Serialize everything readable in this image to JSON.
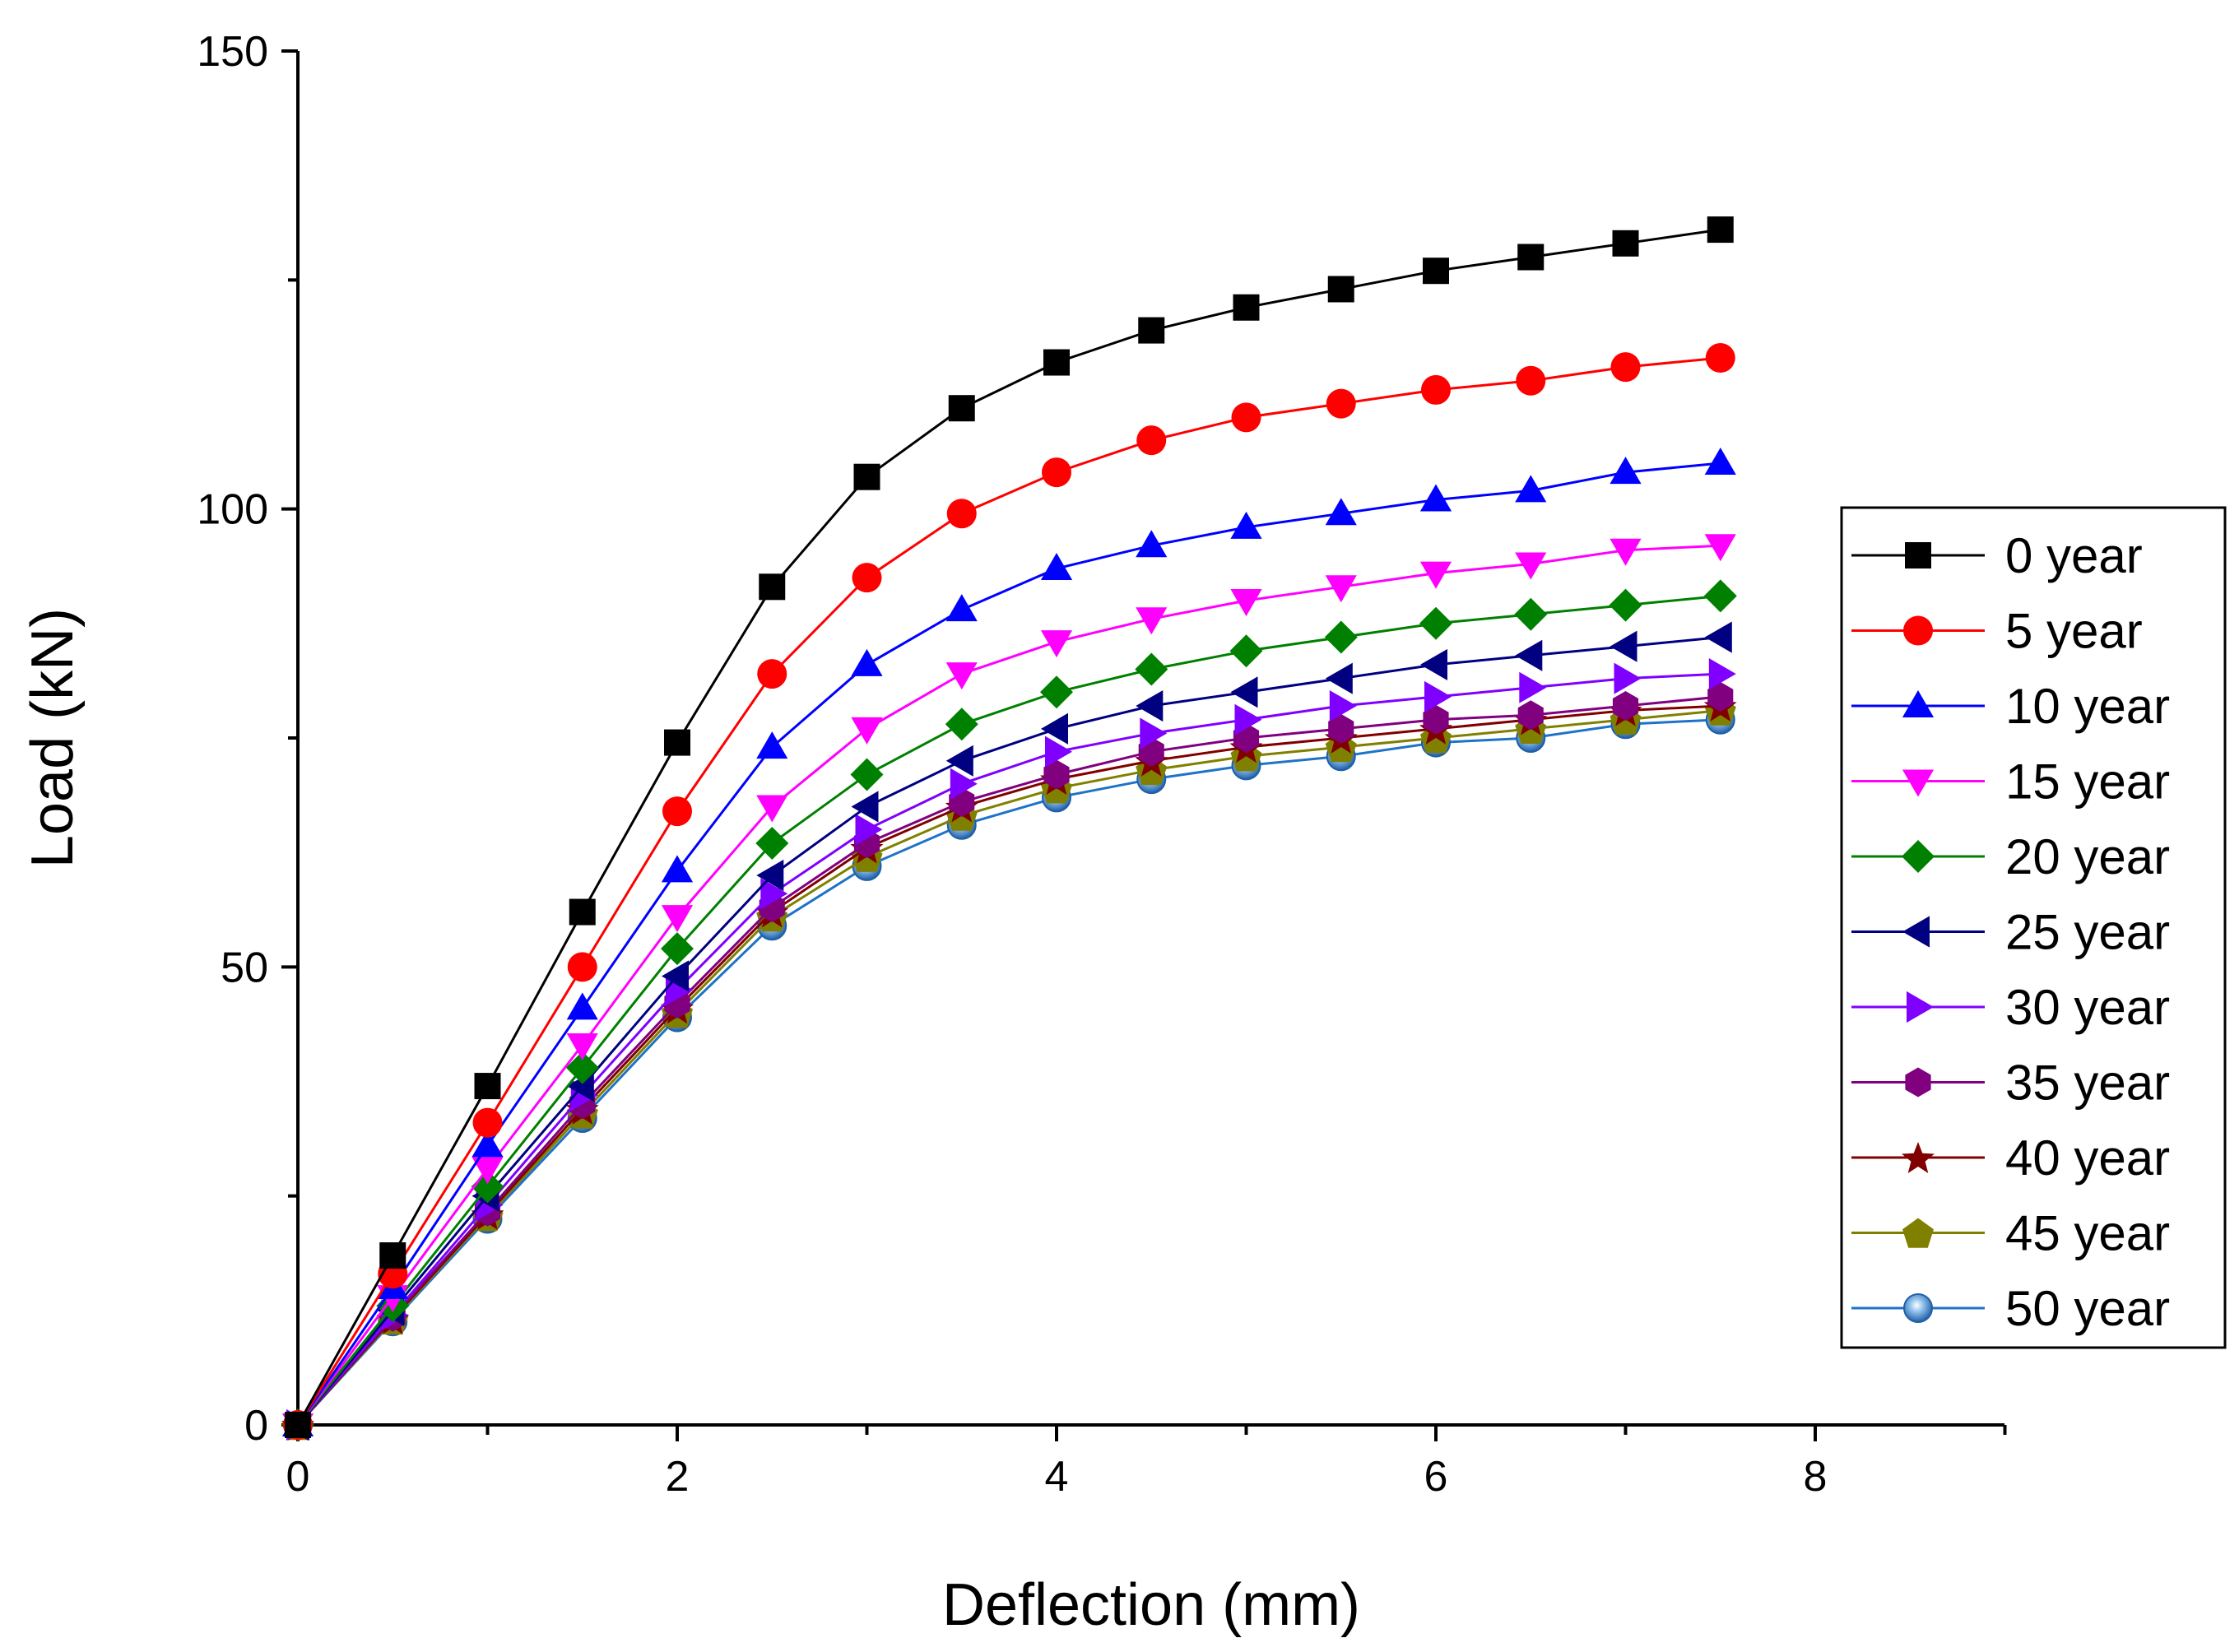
{
  "chart_data": {
    "type": "line",
    "title": "",
    "xlabel": "Deflection (mm)",
    "ylabel": "Load (kN)",
    "xlim": [
      0,
      9
    ],
    "ylim": [
      0,
      150
    ],
    "x_ticks": [
      {
        "value": 0,
        "label": "0"
      },
      {
        "value": 2,
        "label": "2"
      },
      {
        "value": 4,
        "label": "4"
      },
      {
        "value": 6,
        "label": "6"
      },
      {
        "value": 8,
        "label": "8"
      }
    ],
    "y_ticks": [
      {
        "value": 0,
        "label": "0"
      },
      {
        "value": 50,
        "label": "50"
      },
      {
        "value": 100,
        "label": "100"
      },
      {
        "value": 150,
        "label": "150"
      }
    ],
    "legend_position": "right",
    "x": [
      0,
      0.5,
      1,
      1.5,
      2,
      2.5,
      3,
      3.5,
      4,
      4.5,
      5,
      5.5,
      6,
      6.5,
      7,
      7.5
    ],
    "series": [
      {
        "name": "0 year",
        "color": "#000000",
        "marker": "square",
        "values": [
          0,
          18.5,
          37,
          56,
          74.5,
          91.5,
          103.5,
          111,
          116,
          119.5,
          122,
          124,
          126,
          127.5,
          129,
          130.5
        ]
      },
      {
        "name": "5 year",
        "color": "#ff0000",
        "marker": "circle",
        "values": [
          0,
          16.5,
          33,
          50,
          67,
          82,
          92.5,
          99.5,
          104,
          107.5,
          110,
          111.5,
          113,
          114,
          115.5,
          116.5
        ]
      },
      {
        "name": "10 year",
        "color": "#0000ff",
        "marker": "triangle-up",
        "values": [
          0,
          15,
          30.5,
          45.5,
          60.5,
          74,
          83,
          89,
          93.5,
          96,
          98,
          99.5,
          101,
          102,
          104,
          105
        ]
      },
      {
        "name": "15 year",
        "color": "#ff00ff",
        "marker": "triangle-down",
        "values": [
          0,
          14,
          28,
          41.5,
          55.5,
          67.5,
          76,
          82,
          85.5,
          88,
          90,
          91.5,
          93,
          94,
          95.5,
          96
        ]
      },
      {
        "name": "20 year",
        "color": "#008000",
        "marker": "diamond",
        "values": [
          0,
          13,
          26,
          39,
          52,
          63.5,
          71,
          76.5,
          80,
          82.5,
          84.5,
          86,
          87.5,
          88.5,
          89.5,
          90.5
        ]
      },
      {
        "name": "25 year",
        "color": "#000080",
        "marker": "triangle-left",
        "values": [
          0,
          12.5,
          25,
          37,
          49,
          60,
          67.5,
          72.5,
          76,
          78.5,
          80,
          81.5,
          83,
          84,
          85,
          86
        ]
      },
      {
        "name": "30 year",
        "color": "#8000ff",
        "marker": "triangle-right",
        "values": [
          0,
          12,
          24,
          36,
          47.5,
          58,
          65,
          70,
          73.5,
          75.5,
          77,
          78.5,
          79.5,
          80.5,
          81.5,
          82
        ]
      },
      {
        "name": "35 year",
        "color": "#800080",
        "marker": "hexagon",
        "values": [
          0,
          11.8,
          23.3,
          35,
          46,
          56.5,
          63.5,
          68,
          71,
          73.5,
          75,
          76,
          77,
          77.5,
          78.5,
          79.5
        ]
      },
      {
        "name": "40 year",
        "color": "#800000",
        "marker": "star",
        "values": [
          0,
          11.6,
          23,
          34.5,
          45.5,
          56,
          63,
          67.5,
          70.5,
          72.5,
          74,
          75,
          76,
          77,
          78,
          78.5
        ]
      },
      {
        "name": "45 year",
        "color": "#808000",
        "marker": "pentagon",
        "values": [
          0,
          11.5,
          22.8,
          34,
          45,
          55.5,
          62,
          66.5,
          69.5,
          71.5,
          73,
          74,
          75,
          76,
          77,
          78
        ]
      },
      {
        "name": "50 year",
        "color": "#1e73c8",
        "marker": "sphere",
        "values": [
          0,
          11.3,
          22.5,
          33.5,
          44.5,
          54.5,
          61,
          65.5,
          68.5,
          70.5,
          72,
          73,
          74.5,
          75,
          76.5,
          77
        ]
      }
    ]
  }
}
